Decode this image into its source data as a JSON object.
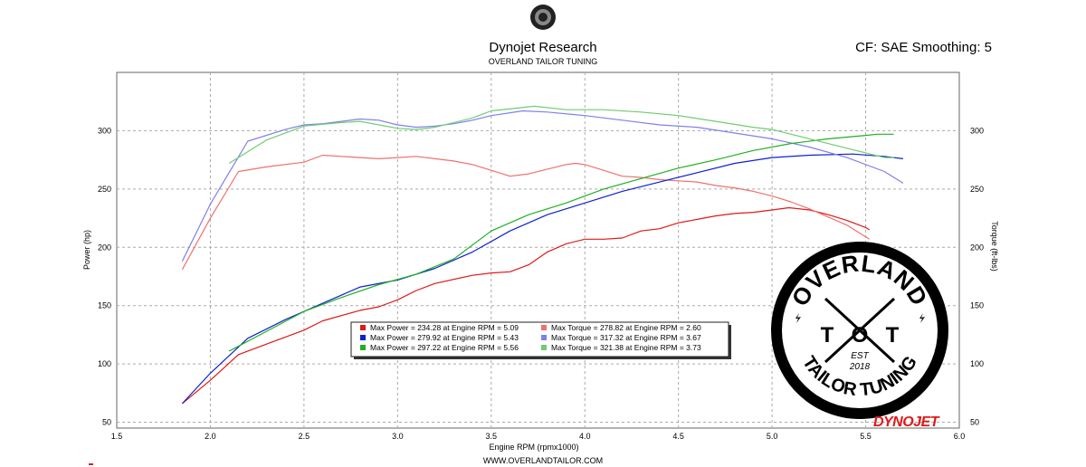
{
  "header": {
    "title": "Dynojet Research",
    "subtitle": "OVERLAND TAILOR TUNING",
    "cf_text": "CF: SAE Smoothing: 5"
  },
  "footer": {
    "url": "WWW.OVERLANDTAILOR.COM"
  },
  "brand": {
    "dynojet": "DYNOJET",
    "logo_top": "OVERLAND",
    "logo_t1": "T",
    "logo_o": "O",
    "logo_t2": "T",
    "logo_bottom": "TAILOR TUNING",
    "logo_est": "EST",
    "logo_year": "2018"
  },
  "colors": {
    "red": "#e01818",
    "lightred": "#f07070",
    "blue": "#1020d0",
    "lightblue": "#8080e8",
    "green": "#20b020",
    "lightgreen": "#70cc70"
  },
  "chart_data": {
    "type": "line",
    "xlabel": "Engine RPM (rpmx1000)",
    "ylabel": "Power (hp)",
    "y2label": "Torque (ft-lbs)",
    "xlim": [
      1.5,
      6.0
    ],
    "ylim": [
      45,
      350
    ],
    "grid": true,
    "legend_position": "bottom-center",
    "x_ticks": [
      "1.5",
      "2.0",
      "2.5",
      "3.0",
      "3.5",
      "4.0",
      "4.5",
      "5.0",
      "5.5",
      "6.0"
    ],
    "y_ticks": [
      "50",
      "100",
      "150",
      "200",
      "250",
      "300"
    ],
    "y2_ticks": [
      "50",
      "100",
      "150",
      "200",
      "250",
      "300"
    ],
    "legend": [
      {
        "label": "Max Power = 234.28 at Engine RPM = 5.09",
        "color": "#e01818"
      },
      {
        "label": "Max Torque = 278.82 at Engine RPM = 2.60",
        "color": "#f07070"
      },
      {
        "label": "Max Power = 279.92 at Engine RPM = 5.43",
        "color": "#1020d0"
      },
      {
        "label": "Max Torque = 317.32 at Engine RPM = 3.67",
        "color": "#8080e8"
      },
      {
        "label": "Max Power = 297.22 at Engine RPM = 5.56",
        "color": "#20b020"
      },
      {
        "label": "Max Torque = 321.38 at Engine RPM = 3.73",
        "color": "#70cc70"
      }
    ],
    "series": [
      {
        "kind": "power",
        "color": "#e01818",
        "points": [
          [
            1.85,
            66
          ],
          [
            2.0,
            86
          ],
          [
            2.15,
            108
          ],
          [
            2.3,
            117
          ],
          [
            2.5,
            129
          ],
          [
            2.6,
            137
          ],
          [
            2.8,
            146
          ],
          [
            2.9,
            149
          ],
          [
            3.0,
            155
          ],
          [
            3.1,
            163
          ],
          [
            3.2,
            169
          ],
          [
            3.4,
            176
          ],
          [
            3.5,
            178
          ],
          [
            3.6,
            179
          ],
          [
            3.7,
            185
          ],
          [
            3.8,
            196
          ],
          [
            3.9,
            203
          ],
          [
            4.0,
            207
          ],
          [
            4.1,
            207
          ],
          [
            4.2,
            208
          ],
          [
            4.3,
            214
          ],
          [
            4.4,
            216
          ],
          [
            4.5,
            221
          ],
          [
            4.6,
            224
          ],
          [
            4.7,
            227
          ],
          [
            4.8,
            229
          ],
          [
            4.9,
            230
          ],
          [
            5.0,
            232
          ],
          [
            5.09,
            234
          ],
          [
            5.2,
            232
          ],
          [
            5.3,
            228
          ],
          [
            5.4,
            223
          ],
          [
            5.5,
            217
          ],
          [
            5.52,
            215
          ]
        ]
      },
      {
        "kind": "torque",
        "color": "#f07070",
        "points": [
          [
            1.85,
            181
          ],
          [
            2.0,
            225
          ],
          [
            2.15,
            265
          ],
          [
            2.3,
            269
          ],
          [
            2.5,
            273
          ],
          [
            2.6,
            279
          ],
          [
            2.7,
            278
          ],
          [
            2.8,
            277
          ],
          [
            2.9,
            276
          ],
          [
            3.0,
            277
          ],
          [
            3.1,
            278
          ],
          [
            3.2,
            276
          ],
          [
            3.3,
            274
          ],
          [
            3.4,
            271
          ],
          [
            3.5,
            266
          ],
          [
            3.6,
            261
          ],
          [
            3.7,
            263
          ],
          [
            3.8,
            267
          ],
          [
            3.9,
            271
          ],
          [
            3.95,
            272
          ],
          [
            4.0,
            271
          ],
          [
            4.1,
            266
          ],
          [
            4.2,
            261
          ],
          [
            4.3,
            260
          ],
          [
            4.4,
            258
          ],
          [
            4.5,
            257
          ],
          [
            4.6,
            256
          ],
          [
            4.7,
            253
          ],
          [
            4.8,
            251
          ],
          [
            4.9,
            248
          ],
          [
            5.0,
            244
          ],
          [
            5.1,
            239
          ],
          [
            5.2,
            233
          ],
          [
            5.3,
            226
          ],
          [
            5.4,
            219
          ],
          [
            5.52,
            207
          ]
        ]
      },
      {
        "kind": "power",
        "color": "#1020d0",
        "points": [
          [
            1.85,
            66
          ],
          [
            2.0,
            92
          ],
          [
            2.2,
            122
          ],
          [
            2.4,
            138
          ],
          [
            2.6,
            152
          ],
          [
            2.8,
            166
          ],
          [
            3.0,
            172
          ],
          [
            3.2,
            182
          ],
          [
            3.4,
            196
          ],
          [
            3.6,
            214
          ],
          [
            3.8,
            228
          ],
          [
            4.0,
            238
          ],
          [
            4.2,
            248
          ],
          [
            4.4,
            256
          ],
          [
            4.6,
            264
          ],
          [
            4.8,
            272
          ],
          [
            5.0,
            277
          ],
          [
            5.2,
            279
          ],
          [
            5.43,
            280
          ],
          [
            5.6,
            278
          ],
          [
            5.7,
            276
          ]
        ]
      },
      {
        "kind": "torque",
        "color": "#8080e8",
        "points": [
          [
            1.85,
            188
          ],
          [
            2.0,
            237
          ],
          [
            2.2,
            291
          ],
          [
            2.4,
            301
          ],
          [
            2.5,
            305
          ],
          [
            2.6,
            306
          ],
          [
            2.8,
            310
          ],
          [
            2.9,
            309
          ],
          [
            3.0,
            305
          ],
          [
            3.1,
            303
          ],
          [
            3.2,
            304
          ],
          [
            3.3,
            306
          ],
          [
            3.4,
            309
          ],
          [
            3.5,
            313
          ],
          [
            3.67,
            317
          ],
          [
            3.8,
            316
          ],
          [
            4.0,
            313
          ],
          [
            4.2,
            309
          ],
          [
            4.4,
            305
          ],
          [
            4.6,
            303
          ],
          [
            4.8,
            298
          ],
          [
            5.0,
            293
          ],
          [
            5.2,
            286
          ],
          [
            5.4,
            277
          ],
          [
            5.6,
            265
          ],
          [
            5.7,
            255
          ]
        ]
      },
      {
        "kind": "power",
        "color": "#20b020",
        "points": [
          [
            2.1,
            111
          ],
          [
            2.3,
            128
          ],
          [
            2.5,
            145
          ],
          [
            2.7,
            157
          ],
          [
            2.9,
            168
          ],
          [
            3.1,
            177
          ],
          [
            3.3,
            190
          ],
          [
            3.5,
            214
          ],
          [
            3.7,
            228
          ],
          [
            3.9,
            238
          ],
          [
            4.1,
            250
          ],
          [
            4.3,
            259
          ],
          [
            4.5,
            268
          ],
          [
            4.7,
            275
          ],
          [
            4.9,
            283
          ],
          [
            5.1,
            289
          ],
          [
            5.3,
            293
          ],
          [
            5.5,
            296
          ],
          [
            5.56,
            297
          ],
          [
            5.65,
            297
          ]
        ]
      },
      {
        "kind": "torque",
        "color": "#70cc70",
        "points": [
          [
            2.1,
            272
          ],
          [
            2.3,
            292
          ],
          [
            2.5,
            304
          ],
          [
            2.7,
            307
          ],
          [
            2.8,
            308
          ],
          [
            3.0,
            302
          ],
          [
            3.1,
            301
          ],
          [
            3.2,
            303
          ],
          [
            3.4,
            311
          ],
          [
            3.5,
            317
          ],
          [
            3.73,
            321
          ],
          [
            3.9,
            318
          ],
          [
            4.1,
            318
          ],
          [
            4.3,
            316
          ],
          [
            4.5,
            313
          ],
          [
            4.7,
            308
          ],
          [
            4.9,
            303
          ],
          [
            5.0,
            301
          ],
          [
            5.2,
            293
          ],
          [
            5.4,
            285
          ],
          [
            5.6,
            277
          ],
          [
            5.65,
            277
          ]
        ]
      }
    ]
  }
}
